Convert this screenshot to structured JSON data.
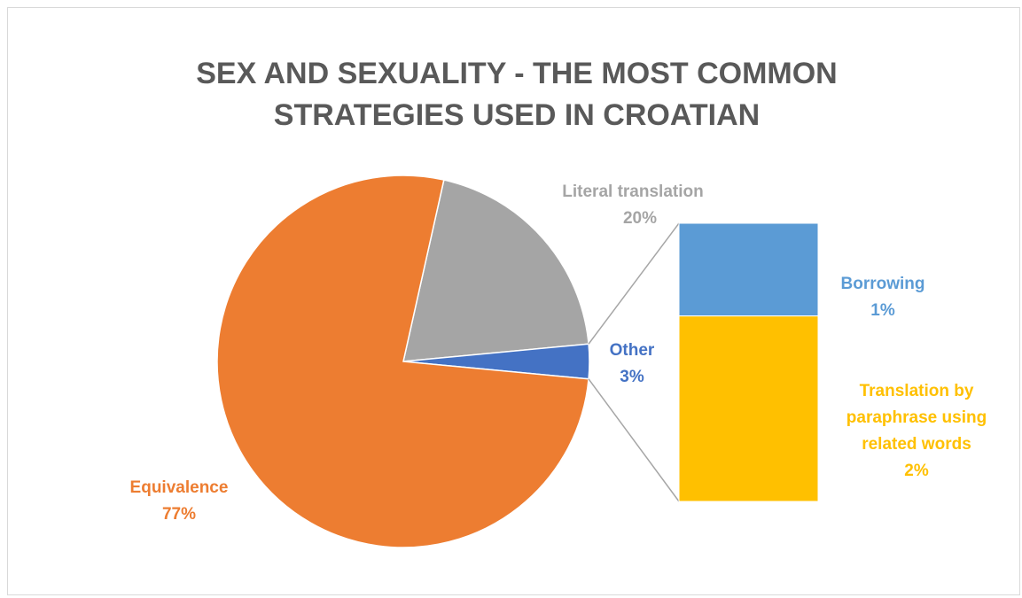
{
  "chart_data": {
    "type": "pie",
    "subtype": "bar-of-pie",
    "title_lines": [
      "SEX AND SEXUALITY - THE MOST COMMON",
      "STRATEGIES USED IN CROATIAN"
    ],
    "slices": [
      {
        "name": "Literal translation",
        "pct_label": "20%",
        "value": 20,
        "color": "#a5a5a5"
      },
      {
        "name": "Other",
        "pct_label": "3%",
        "value": 3,
        "color": "#4472c4"
      },
      {
        "name": "Equivalence",
        "pct_label": "77%",
        "value": 77,
        "color": "#ed7d31"
      }
    ],
    "bar_breakdown": [
      {
        "name": "Borrowing",
        "pct_label": "1%",
        "value": 1,
        "color": "#5b9bd5"
      },
      {
        "name_lines": [
          "Translation by",
          "paraphrase using",
          "related words"
        ],
        "pct_label": "2%",
        "value": 2,
        "color": "#ffc000"
      }
    ],
    "grid": false,
    "legend": "none"
  }
}
